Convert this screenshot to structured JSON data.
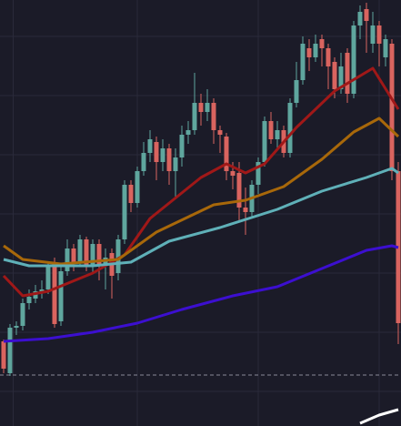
{
  "chart_data": {
    "type": "candlestick",
    "background": "#1b1b28",
    "grid": true,
    "grid_color": "#2a2a3a",
    "up_color": "#5fa69e",
    "down_color": "#d9645f",
    "ylim": [
      0,
      468
    ],
    "xlim": [
      -0.57,
      62.43
    ],
    "yticks": [
      38,
      103,
      168,
      233,
      298,
      363,
      428
    ],
    "xticks": [
      1.5,
      21,
      40,
      59
    ],
    "open": [
      93,
      58,
      108,
      110,
      135,
      140,
      146,
      150,
      178,
      115,
      170,
      195,
      180,
      205,
      175,
      200,
      178,
      190,
      168,
      205,
      265,
      245,
      280,
      300,
      312,
      290,
      305,
      280,
      295,
      320,
      325,
      355,
      345,
      355,
      325,
      318,
      280,
      278,
      240,
      235,
      265,
      290,
      335,
      315,
      325,
      300,
      355,
      380,
      415,
      405,
      425,
      415,
      400,
      370,
      410,
      365,
      440,
      458,
      420,
      440,
      405,
      420,
      280
    ],
    "high": [
      95,
      112,
      115,
      140,
      150,
      155,
      160,
      180,
      185,
      175,
      205,
      200,
      210,
      208,
      205,
      205,
      195,
      195,
      210,
      270,
      270,
      285,
      312,
      325,
      318,
      315,
      310,
      305,
      330,
      335,
      388,
      365,
      370,
      360,
      330,
      322,
      290,
      290,
      262,
      270,
      295,
      340,
      345,
      335,
      330,
      360,
      400,
      428,
      425,
      430,
      430,
      420,
      405,
      410,
      415,
      445,
      462,
      465,
      455,
      445,
      430,
      425,
      290
    ],
    "low": [
      58,
      55,
      100,
      105,
      128,
      135,
      140,
      145,
      108,
      110,
      165,
      170,
      175,
      170,
      168,
      160,
      150,
      140,
      160,
      200,
      235,
      240,
      275,
      290,
      270,
      280,
      265,
      250,
      285,
      310,
      320,
      330,
      335,
      310,
      300,
      270,
      260,
      225,
      210,
      230,
      255,
      285,
      310,
      305,
      295,
      295,
      350,
      375,
      390,
      400,
      395,
      370,
      360,
      365,
      355,
      360,
      425,
      410,
      410,
      395,
      395,
      270,
      90
    ],
    "close": [
      63,
      108,
      110,
      135,
      142,
      148,
      150,
      175,
      112,
      170,
      195,
      180,
      205,
      175,
      200,
      178,
      185,
      165,
      205,
      265,
      245,
      280,
      300,
      315,
      290,
      305,
      280,
      295,
      320,
      325,
      355,
      345,
      355,
      325,
      320,
      280,
      275,
      240,
      235,
      265,
      290,
      335,
      315,
      325,
      300,
      355,
      380,
      420,
      405,
      420,
      415,
      395,
      370,
      395,
      365,
      440,
      455,
      445,
      440,
      420,
      425,
      280,
      113
    ],
    "lines": [
      {
        "color": "#a01818",
        "x": [
          0,
          3,
          7,
          14,
          19,
          23,
          31,
          35,
          38,
          41,
          46,
          52,
          58,
          62
        ],
        "values": [
          165,
          143,
          148,
          168,
          188,
          228,
          273,
          288,
          278,
          288,
          328,
          368,
          393,
          348
        ]
      },
      {
        "color": "#a8680a",
        "x": [
          0,
          3,
          9,
          18,
          24,
          33,
          38,
          44,
          50,
          55,
          59,
          62
        ],
        "values": [
          198,
          183,
          178,
          183,
          213,
          243,
          248,
          263,
          293,
          323,
          338,
          318
        ]
      },
      {
        "color": "#5fb0b8",
        "x": [
          0,
          4,
          14,
          20,
          26,
          34,
          43,
          50,
          57,
          61,
          62
        ],
        "values": [
          183,
          176,
          176,
          180,
          203,
          218,
          238,
          258,
          273,
          283,
          278
        ]
      },
      {
        "color": "#3c0fd0",
        "x": [
          0,
          7,
          14,
          21,
          28,
          36,
          43,
          50,
          57,
          61,
          62
        ],
        "values": [
          93,
          96,
          103,
          113,
          128,
          143,
          153,
          173,
          193,
          198,
          196
        ]
      },
      {
        "color": "#ffffff",
        "x": [
          56,
          59,
          62
        ],
        "values": [
          3,
          12,
          18
        ]
      }
    ],
    "price_line": 56
  }
}
